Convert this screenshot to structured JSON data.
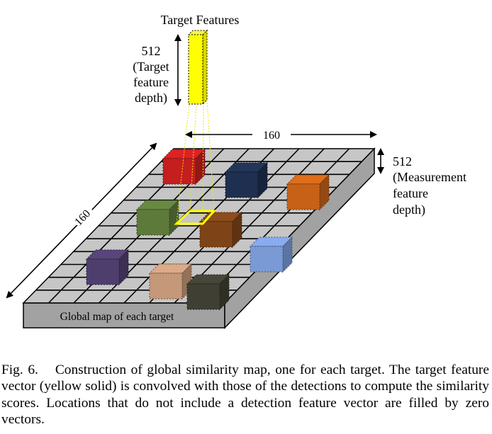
{
  "figure": {
    "target_title": "Target Features",
    "target_depth_value": "512",
    "target_depth_lines": [
      "(Target",
      "feature",
      "depth)"
    ],
    "width_label": "160",
    "height_label": "160",
    "measurement_depth_value": "512",
    "measurement_depth_lines": [
      "(Measurement",
      "feature",
      "depth)"
    ],
    "base_label": "Global map of each target",
    "colors": {
      "target_vector": "#ffff00",
      "grid_top": "#c6c6c6",
      "grid_side": "#a2a2a2",
      "cubes": [
        "#c41e1e",
        "#1f2f4f",
        "#c76118",
        "#5d7a3a",
        "#7e4418",
        "#7a9ad6",
        "#4e3e6e",
        "#c49878",
        "#3f3f33"
      ]
    }
  },
  "caption": {
    "label": "Fig. 6.",
    "text": "Construction of global similarity map, one for each target. The target feature vector (yellow solid) is convolved with those of the detections to compute the similarity scores. Locations that do not include a detection feature vector are filled by zero vectors."
  }
}
